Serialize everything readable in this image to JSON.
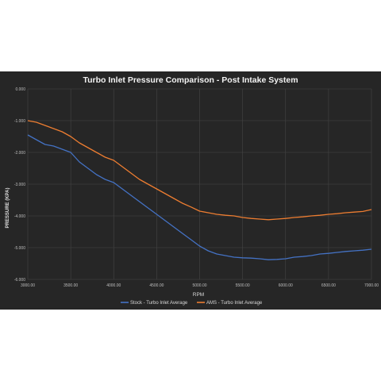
{
  "chart_data": {
    "type": "line",
    "title": "Turbo Inlet Pressure Comparison - Post Intake System",
    "xlabel": "RPM",
    "ylabel": "PRESSURE (KPA)",
    "xlim": [
      3000,
      7000
    ],
    "ylim": [
      -6,
      0
    ],
    "x_ticks": [
      "3000.00",
      "3500.00",
      "4000.00",
      "4500.00",
      "5000.00",
      "5500.00",
      "6000.00",
      "6500.00",
      "7000.00"
    ],
    "y_ticks": [
      "0.000",
      "-1.000",
      "-2.000",
      "-3.000",
      "-4.000",
      "-5.000",
      "-6.000"
    ],
    "grid": true,
    "legend_position": "bottom",
    "series": [
      {
        "name": "Stock - Turbo Inlet Average",
        "color": "#4472c4",
        "x": [
          3000,
          3100,
          3200,
          3300,
          3400,
          3500,
          3600,
          3700,
          3800,
          3900,
          4000,
          4100,
          4200,
          4300,
          4400,
          4500,
          4600,
          4700,
          4800,
          4900,
          5000,
          5100,
          5200,
          5300,
          5400,
          5500,
          5600,
          5700,
          5800,
          5900,
          6000,
          6100,
          6200,
          6300,
          6400,
          6500,
          6600,
          6700,
          6800,
          6900,
          7000
        ],
        "y": [
          -1.45,
          -1.6,
          -1.75,
          -1.8,
          -1.9,
          -2.0,
          -2.3,
          -2.5,
          -2.7,
          -2.85,
          -2.95,
          -3.15,
          -3.35,
          -3.55,
          -3.75,
          -3.95,
          -4.15,
          -4.35,
          -4.55,
          -4.75,
          -4.95,
          -5.1,
          -5.2,
          -5.25,
          -5.3,
          -5.32,
          -5.33,
          -5.35,
          -5.38,
          -5.37,
          -5.35,
          -5.3,
          -5.28,
          -5.25,
          -5.2,
          -5.18,
          -5.15,
          -5.12,
          -5.1,
          -5.08,
          -5.05
        ]
      },
      {
        "name": "AMS - Turbo Inlet Average",
        "color": "#ed7d31",
        "x": [
          3000,
          3100,
          3200,
          3300,
          3400,
          3500,
          3600,
          3700,
          3800,
          3900,
          4000,
          4100,
          4200,
          4300,
          4400,
          4500,
          4600,
          4700,
          4800,
          4900,
          5000,
          5100,
          5200,
          5300,
          5400,
          5500,
          5600,
          5700,
          5800,
          5900,
          6000,
          6100,
          6200,
          6300,
          6400,
          6500,
          6600,
          6700,
          6800,
          6900,
          7000
        ],
        "y": [
          -1.0,
          -1.05,
          -1.15,
          -1.25,
          -1.35,
          -1.5,
          -1.7,
          -1.85,
          -2.0,
          -2.15,
          -2.25,
          -2.45,
          -2.65,
          -2.85,
          -3.0,
          -3.15,
          -3.3,
          -3.45,
          -3.6,
          -3.72,
          -3.85,
          -3.9,
          -3.95,
          -3.98,
          -4.0,
          -4.05,
          -4.08,
          -4.1,
          -4.12,
          -4.1,
          -4.08,
          -4.05,
          -4.03,
          -4.0,
          -3.98,
          -3.95,
          -3.93,
          -3.9,
          -3.88,
          -3.86,
          -3.8
        ]
      }
    ]
  }
}
